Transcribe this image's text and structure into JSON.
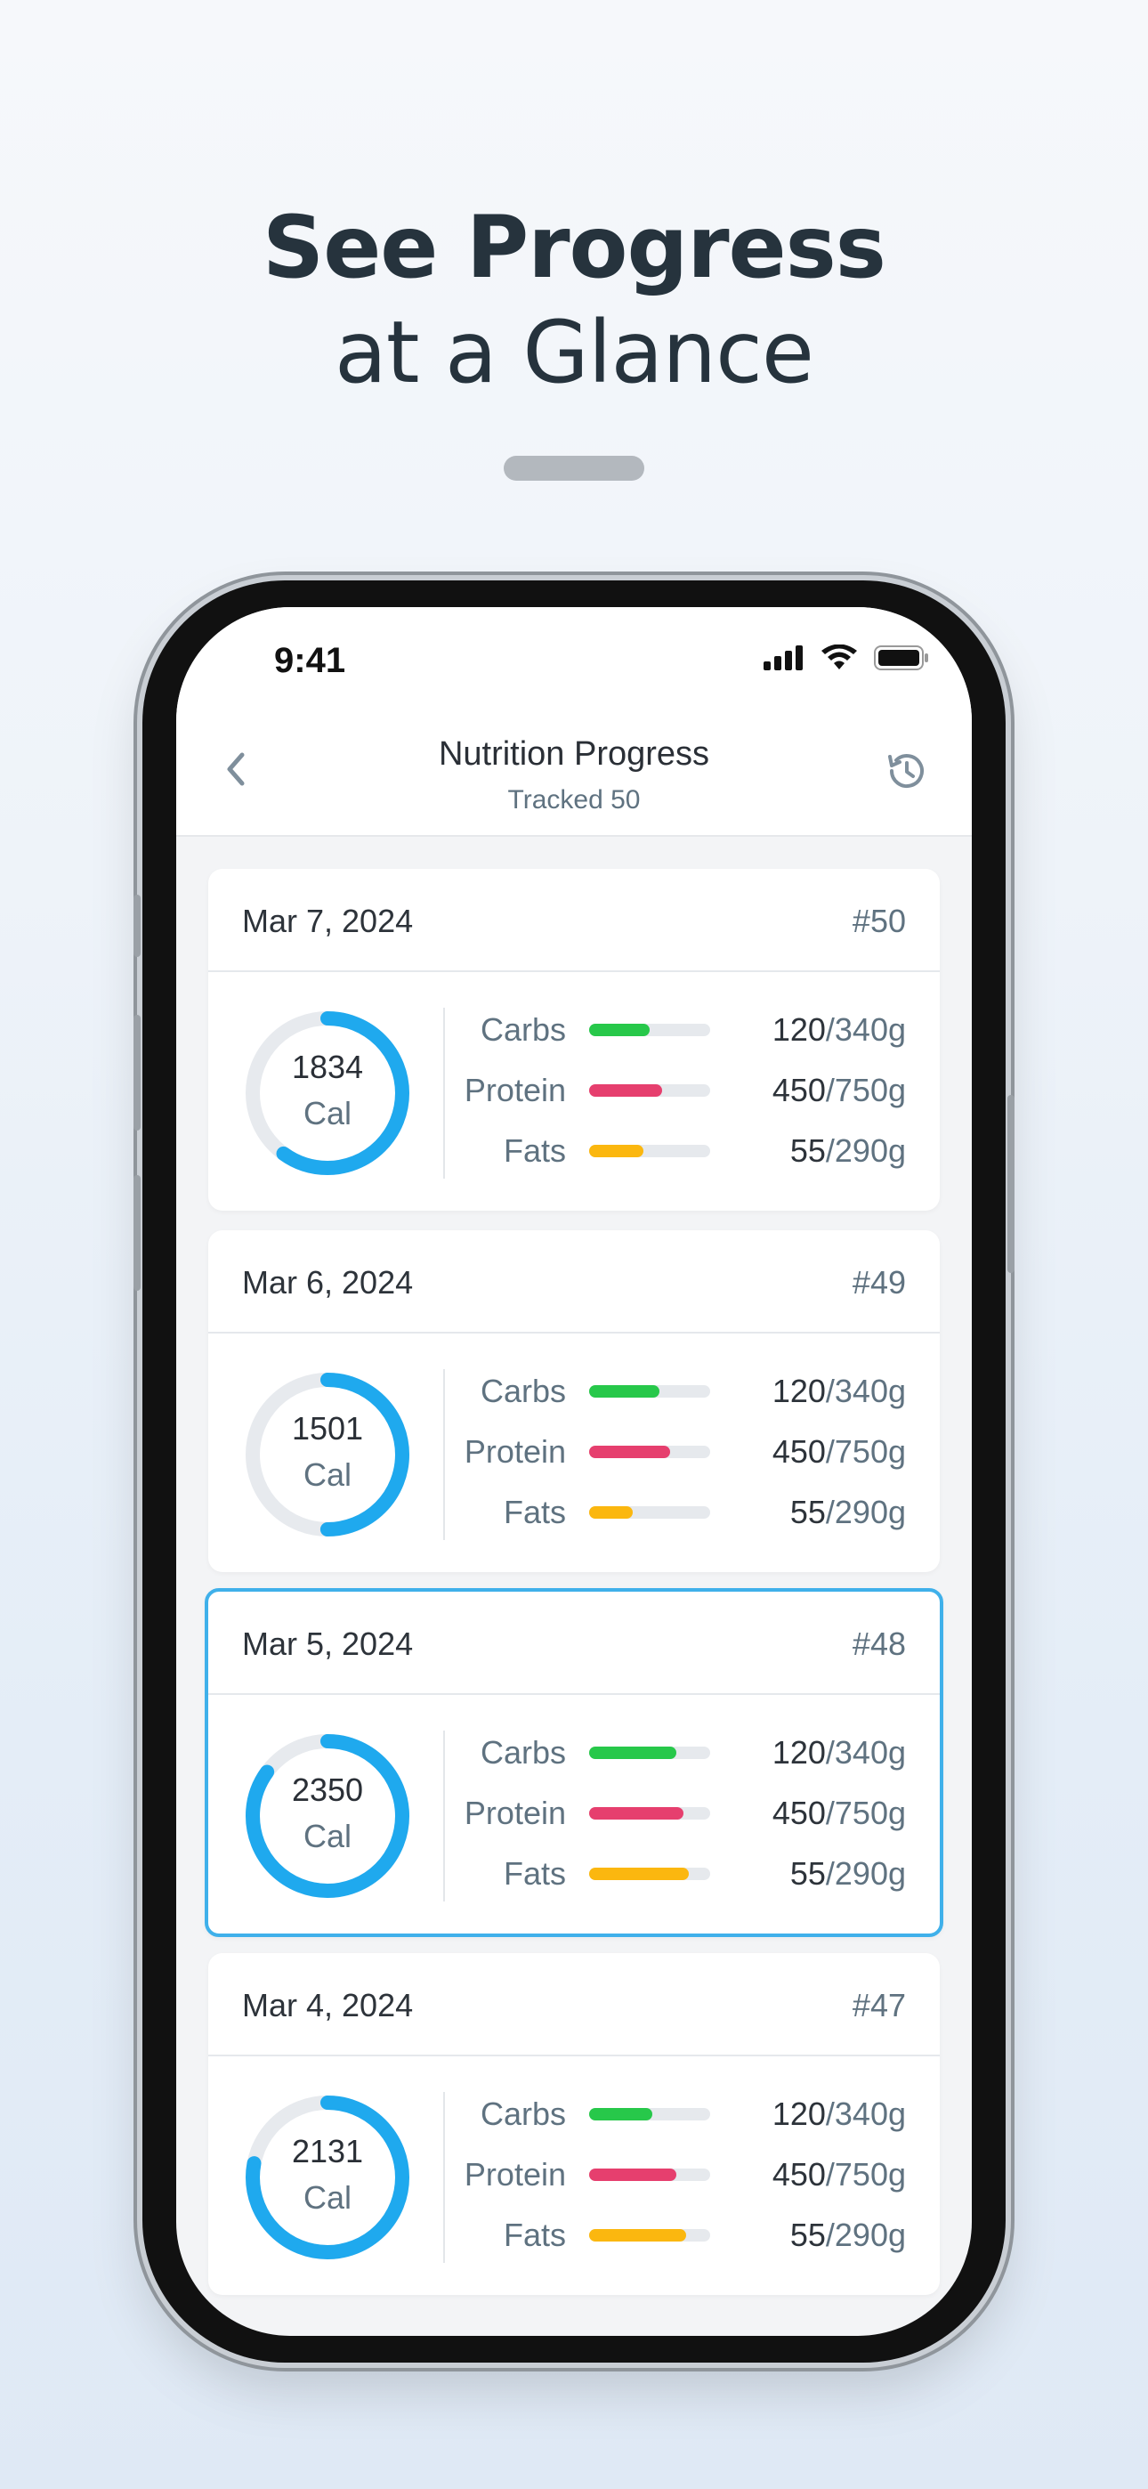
{
  "headline": {
    "line1": "See Progress",
    "line2": "at a Glance"
  },
  "status_bar": {
    "time": "9:41"
  },
  "nav": {
    "title": "Nutrition Progress",
    "subtitle": "Tracked 50"
  },
  "colors": {
    "carbs": "#27c84a",
    "protein": "#e63f6e",
    "fats": "#fbb70f",
    "ring": "#1fa9ee",
    "ring_track": "#e7eaee",
    "selected_border": "#3fb0ea"
  },
  "entries": [
    {
      "date": "Mar 7, 2024",
      "number": "#50",
      "calories": "1834",
      "unit": "Cal",
      "ring_fraction": 0.6,
      "macros": [
        {
          "label": "Carbs",
          "value": "120",
          "total": "/340g",
          "fraction": 0.5
        },
        {
          "label": "Protein",
          "value": "450",
          "total": "/750g",
          "fraction": 0.6
        },
        {
          "label": "Fats",
          "value": "55",
          "total": "/290g",
          "fraction": 0.45
        }
      ]
    },
    {
      "date": "Mar 6, 2024",
      "number": "#49",
      "calories": "1501",
      "unit": "Cal",
      "ring_fraction": 0.5,
      "macros": [
        {
          "label": "Carbs",
          "value": "120",
          "total": "/340g",
          "fraction": 0.58
        },
        {
          "label": "Protein",
          "value": "450",
          "total": "/750g",
          "fraction": 0.67
        },
        {
          "label": "Fats",
          "value": "55",
          "total": "/290g",
          "fraction": 0.36
        }
      ]
    },
    {
      "date": "Mar 5, 2024",
      "number": "#48",
      "calories": "2350",
      "unit": "Cal",
      "ring_fraction": 0.85,
      "selected": true,
      "macros": [
        {
          "label": "Carbs",
          "value": "120",
          "total": "/340g",
          "fraction": 0.72
        },
        {
          "label": "Protein",
          "value": "450",
          "total": "/750g",
          "fraction": 0.78
        },
        {
          "label": "Fats",
          "value": "55",
          "total": "/290g",
          "fraction": 0.82
        }
      ]
    },
    {
      "date": "Mar 4, 2024",
      "number": "#47",
      "calories": "2131",
      "unit": "Cal",
      "ring_fraction": 0.78,
      "macros": [
        {
          "label": "Carbs",
          "value": "120",
          "total": "/340g",
          "fraction": 0.52
        },
        {
          "label": "Protein",
          "value": "450",
          "total": "/750g",
          "fraction": 0.72
        },
        {
          "label": "Fats",
          "value": "55",
          "total": "/290g",
          "fraction": 0.8
        }
      ]
    }
  ]
}
